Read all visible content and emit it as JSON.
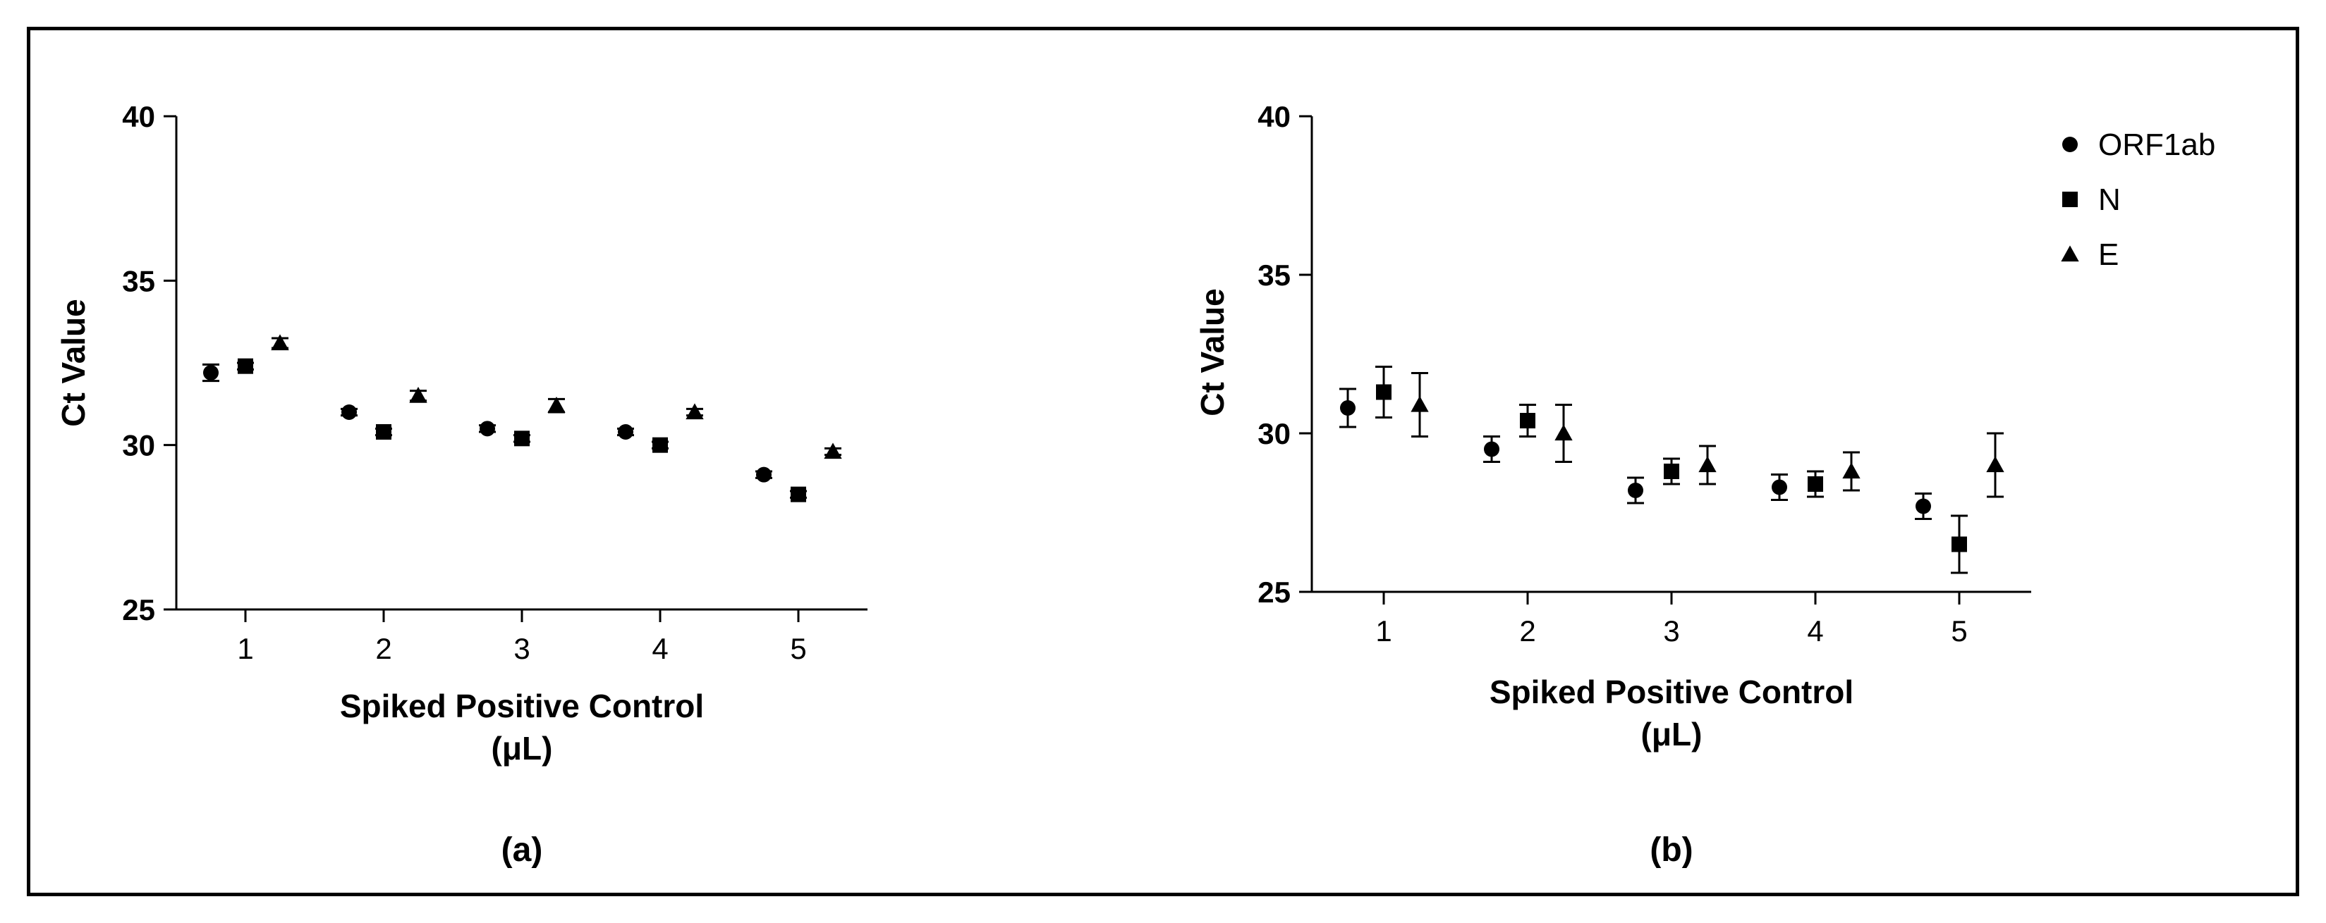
{
  "chart_data": [
    {
      "panel_label": "(a)",
      "type": "scatter",
      "xlabel_line1": "Spiked Positive Control",
      "xlabel_line2": "(μL)",
      "ylabel": "Ct Value",
      "ylim": [
        25,
        40
      ],
      "yticks": [
        25,
        30,
        35,
        40
      ],
      "xticks": [
        1,
        2,
        3,
        4,
        5
      ],
      "xlim": [
        0.5,
        5.5
      ],
      "grid": false,
      "series": [
        {
          "name": "ORF1ab",
          "marker": "circle",
          "offset": -0.25,
          "values": [
            32.2,
            31.0,
            30.5,
            30.4,
            29.1
          ],
          "errors": [
            0.25,
            0.1,
            0.1,
            0.1,
            0.1
          ]
        },
        {
          "name": "N",
          "marker": "square",
          "offset": 0,
          "values": [
            32.4,
            30.4,
            30.2,
            30.0,
            28.5
          ],
          "errors": [
            0.1,
            0.1,
            0.1,
            0.1,
            0.1
          ]
        },
        {
          "name": "E",
          "marker": "triangle",
          "offset": 0.25,
          "values": [
            33.1,
            31.5,
            31.2,
            31.0,
            29.8
          ],
          "errors": [
            0.15,
            0.15,
            0.2,
            0.1,
            0.1
          ]
        }
      ]
    },
    {
      "panel_label": "(b)",
      "type": "scatter",
      "xlabel_line1": "Spiked Positive Control",
      "xlabel_line2": "(μL)",
      "ylabel": "Ct Value",
      "ylim": [
        25,
        40
      ],
      "yticks": [
        25,
        30,
        35,
        40
      ],
      "xticks": [
        1,
        2,
        3,
        4,
        5
      ],
      "xlim": [
        0.5,
        5.5
      ],
      "grid": false,
      "legend": "top-right",
      "series": [
        {
          "name": "ORF1ab",
          "marker": "circle",
          "offset": -0.25,
          "values": [
            30.8,
            29.5,
            28.2,
            28.3,
            27.7
          ],
          "errors": [
            0.6,
            0.4,
            0.4,
            0.4,
            0.4
          ]
        },
        {
          "name": "N",
          "marker": "square",
          "offset": 0,
          "values": [
            31.3,
            30.4,
            28.8,
            28.4,
            26.5
          ],
          "errors": [
            0.8,
            0.5,
            0.4,
            0.4,
            0.9
          ]
        },
        {
          "name": "E",
          "marker": "triangle",
          "offset": 0.25,
          "values": [
            30.9,
            30.0,
            29.0,
            28.8,
            29.0
          ],
          "errors": [
            1.0,
            0.9,
            0.6,
            0.6,
            1.0
          ]
        }
      ]
    }
  ]
}
